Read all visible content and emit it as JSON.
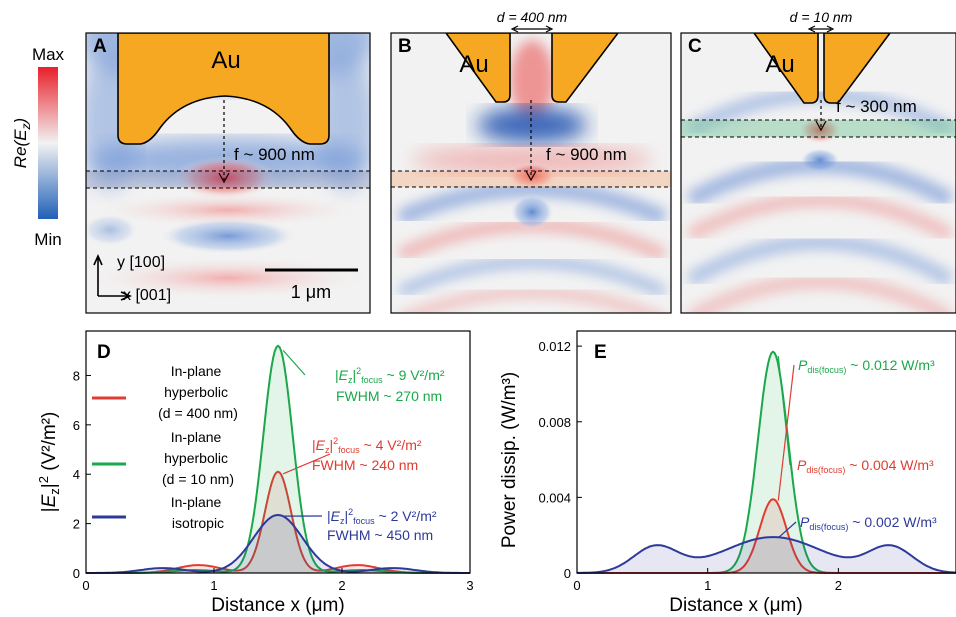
{
  "colorbar": {
    "max_label": "Max",
    "min_label": "Min",
    "quantity_label": "Re(E",
    "quantity_sub": "z",
    "quantity_close": ")",
    "colors": {
      "max": "#e8202a",
      "mid": "#f2f2f2",
      "min": "#2060b8"
    }
  },
  "panels": {
    "A": {
      "letter": "A",
      "metal": "Au",
      "focal_label": "f ~ 900 nm",
      "y_axis_label": "y [100]",
      "x_axis_label": "x [001]",
      "scalebar_label": "1 μm"
    },
    "B": {
      "letter": "B",
      "metal": "Au",
      "gap_label": "d = 400 nm",
      "focal_label": "f ~ 900 nm"
    },
    "C": {
      "letter": "C",
      "metal": "Au",
      "gap_label": "d = 10 nm",
      "focal_label": "f ~ 300 nm"
    }
  },
  "colors": {
    "gold": "#f7a823",
    "red": "#e03c31",
    "green": "#1aa84a",
    "blue": "#2e3a9a"
  },
  "chart_data": [
    {
      "id": "D",
      "type": "line",
      "panel_letter": "D",
      "xlabel": "Distance x (μm)",
      "ylabel": "|Ez|² (V²/m²)",
      "xlim": [
        0,
        3
      ],
      "ylim": [
        0,
        9.8
      ],
      "x_ticks": [
        "0",
        "1",
        "2",
        "3"
      ],
      "y_ticks": [
        "0",
        "2",
        "4",
        "6",
        "8"
      ],
      "y_tick_values": [
        0,
        2,
        4,
        6,
        8
      ],
      "x_tick_values": [
        0,
        1,
        2,
        3
      ],
      "legend": [
        {
          "name_lines": [
            "In-plane",
            "hyperbolic",
            "(d = 400 nm)"
          ],
          "color": "#e03c31"
        },
        {
          "name_lines": [
            "In-plane",
            "hyperbolic",
            "(d = 10 nm)"
          ],
          "color": "#1aa84a"
        },
        {
          "name_lines": [
            "In-plane",
            "isotropic"
          ],
          "color": "#2e3a9a"
        }
      ],
      "series": [
        {
          "color": "#e03c31",
          "peak": 4.1,
          "center": 1.5,
          "fwhm_um": 0.24,
          "side_lobes": [
            [
              0.88,
              0.32
            ],
            [
              2.12,
              0.32
            ]
          ],
          "annotation_value": "4 V²/m²",
          "annotation_fwhm": "FWHM ~ 240 nm"
        },
        {
          "color": "#1aa84a",
          "peak": 9.2,
          "center": 1.5,
          "fwhm_um": 0.27,
          "side_lobes": [
            [
              0.85,
              0.12
            ],
            [
              2.15,
              0.12
            ]
          ],
          "annotation_value": "9 V²/m²",
          "annotation_fwhm": "FWHM ~ 270 nm"
        },
        {
          "color": "#2e3a9a",
          "peak": 2.35,
          "center": 1.5,
          "fwhm_um": 0.45,
          "side_lobes": [
            [
              0.6,
              0.2
            ],
            [
              2.4,
              0.2
            ]
          ],
          "annotation_value": "2 V²/m²",
          "annotation_fwhm": "FWHM ~ 450 nm"
        }
      ]
    },
    {
      "id": "E",
      "type": "line",
      "panel_letter": "E",
      "xlabel": "Distance x (μm)",
      "ylabel": "Power dissip. (W/m³)",
      "xlim": [
        0,
        2.9
      ],
      "ylim": [
        0,
        0.0128
      ],
      "x_ticks": [
        "0",
        "1",
        "2"
      ],
      "y_ticks": [
        "0",
        "0.004",
        "0.008",
        "0.012"
      ],
      "y_tick_values": [
        0,
        0.004,
        0.008,
        0.012
      ],
      "x_tick_values": [
        0,
        1,
        2
      ],
      "series": [
        {
          "color": "#1aa84a",
          "peak": 0.0117,
          "center": 1.5,
          "fwhm_um": 0.27,
          "side_lobes": [],
          "annotation_value": "~ 0.012 W/m³"
        },
        {
          "color": "#e03c31",
          "peak": 0.0039,
          "center": 1.5,
          "fwhm_um": 0.24,
          "side_lobes": [],
          "annotation_value": "~ 0.004 W/m³"
        },
        {
          "color": "#2e3a9a",
          "peak": 0.0019,
          "center": 1.5,
          "fwhm_um": 0.9,
          "side_lobes": [
            [
              0.6,
              0.00135
            ],
            [
              2.4,
              0.00135
            ]
          ],
          "annotation_value": "~ 0.002 W/m³"
        }
      ]
    }
  ]
}
